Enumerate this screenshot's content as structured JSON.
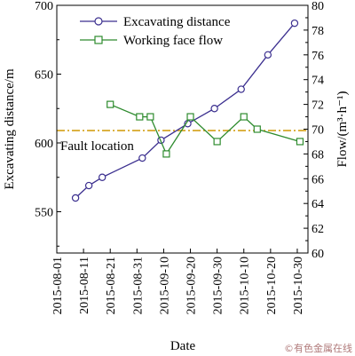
{
  "chart_data": {
    "type": "line",
    "title": "",
    "xlabel": "Date",
    "ylabel_left": "Excavating distance/m",
    "ylabel_right": "Flow/(m³·h⁻¹)",
    "ylim_left": [
      520,
      700
    ],
    "ylim_right": [
      60,
      80
    ],
    "yticks_left": [
      550,
      600,
      650,
      700
    ],
    "yticks_right": [
      60,
      62,
      64,
      66,
      68,
      70,
      72,
      74,
      76,
      78,
      80
    ],
    "x_tick_labels": [
      "2015-08-01",
      "2015-08-11",
      "2015-08-21",
      "2015-08-31",
      "2015-09-10",
      "2015-09-20",
      "2015-09-30",
      "2015-10-10",
      "2015-10-20",
      "2015-10-30"
    ],
    "x_range": [
      "2015-08-01",
      "2015-11-03"
    ],
    "legend_position": "top-left",
    "series": [
      {
        "name": "Excavating distance",
        "axis": "left",
        "color": "#3b2f8f",
        "marker": "circle",
        "points": [
          {
            "x": "2015-08-08",
            "y": 560
          },
          {
            "x": "2015-08-13",
            "y": 569
          },
          {
            "x": "2015-08-18",
            "y": 575
          },
          {
            "x": "2015-09-02",
            "y": 589
          },
          {
            "x": "2015-09-09",
            "y": 602
          },
          {
            "x": "2015-09-19",
            "y": 614
          },
          {
            "x": "2015-09-29",
            "y": 625
          },
          {
            "x": "2015-10-09",
            "y": 639
          },
          {
            "x": "2015-10-19",
            "y": 664
          },
          {
            "x": "2015-10-29",
            "y": 687
          }
        ]
      },
      {
        "name": "Working face flow",
        "axis": "right",
        "color": "#2e8b2e",
        "marker": "square",
        "points": [
          {
            "x": "2015-08-21",
            "y": 72
          },
          {
            "x": "2015-09-01",
            "y": 71
          },
          {
            "x": "2015-09-05",
            "y": 71
          },
          {
            "x": "2015-09-11",
            "y": 68
          },
          {
            "x": "2015-09-20",
            "y": 71
          },
          {
            "x": "2015-09-30",
            "y": 69
          },
          {
            "x": "2015-10-10",
            "y": 71
          },
          {
            "x": "2015-10-15",
            "y": 70
          },
          {
            "x": "2015-10-31",
            "y": 69
          }
        ]
      }
    ],
    "reference_line": {
      "label": "Fault location",
      "axis": "left",
      "y": 609,
      "color": "#d4a017",
      "style": "dash-dot"
    }
  },
  "watermark": "©有色金属在线"
}
